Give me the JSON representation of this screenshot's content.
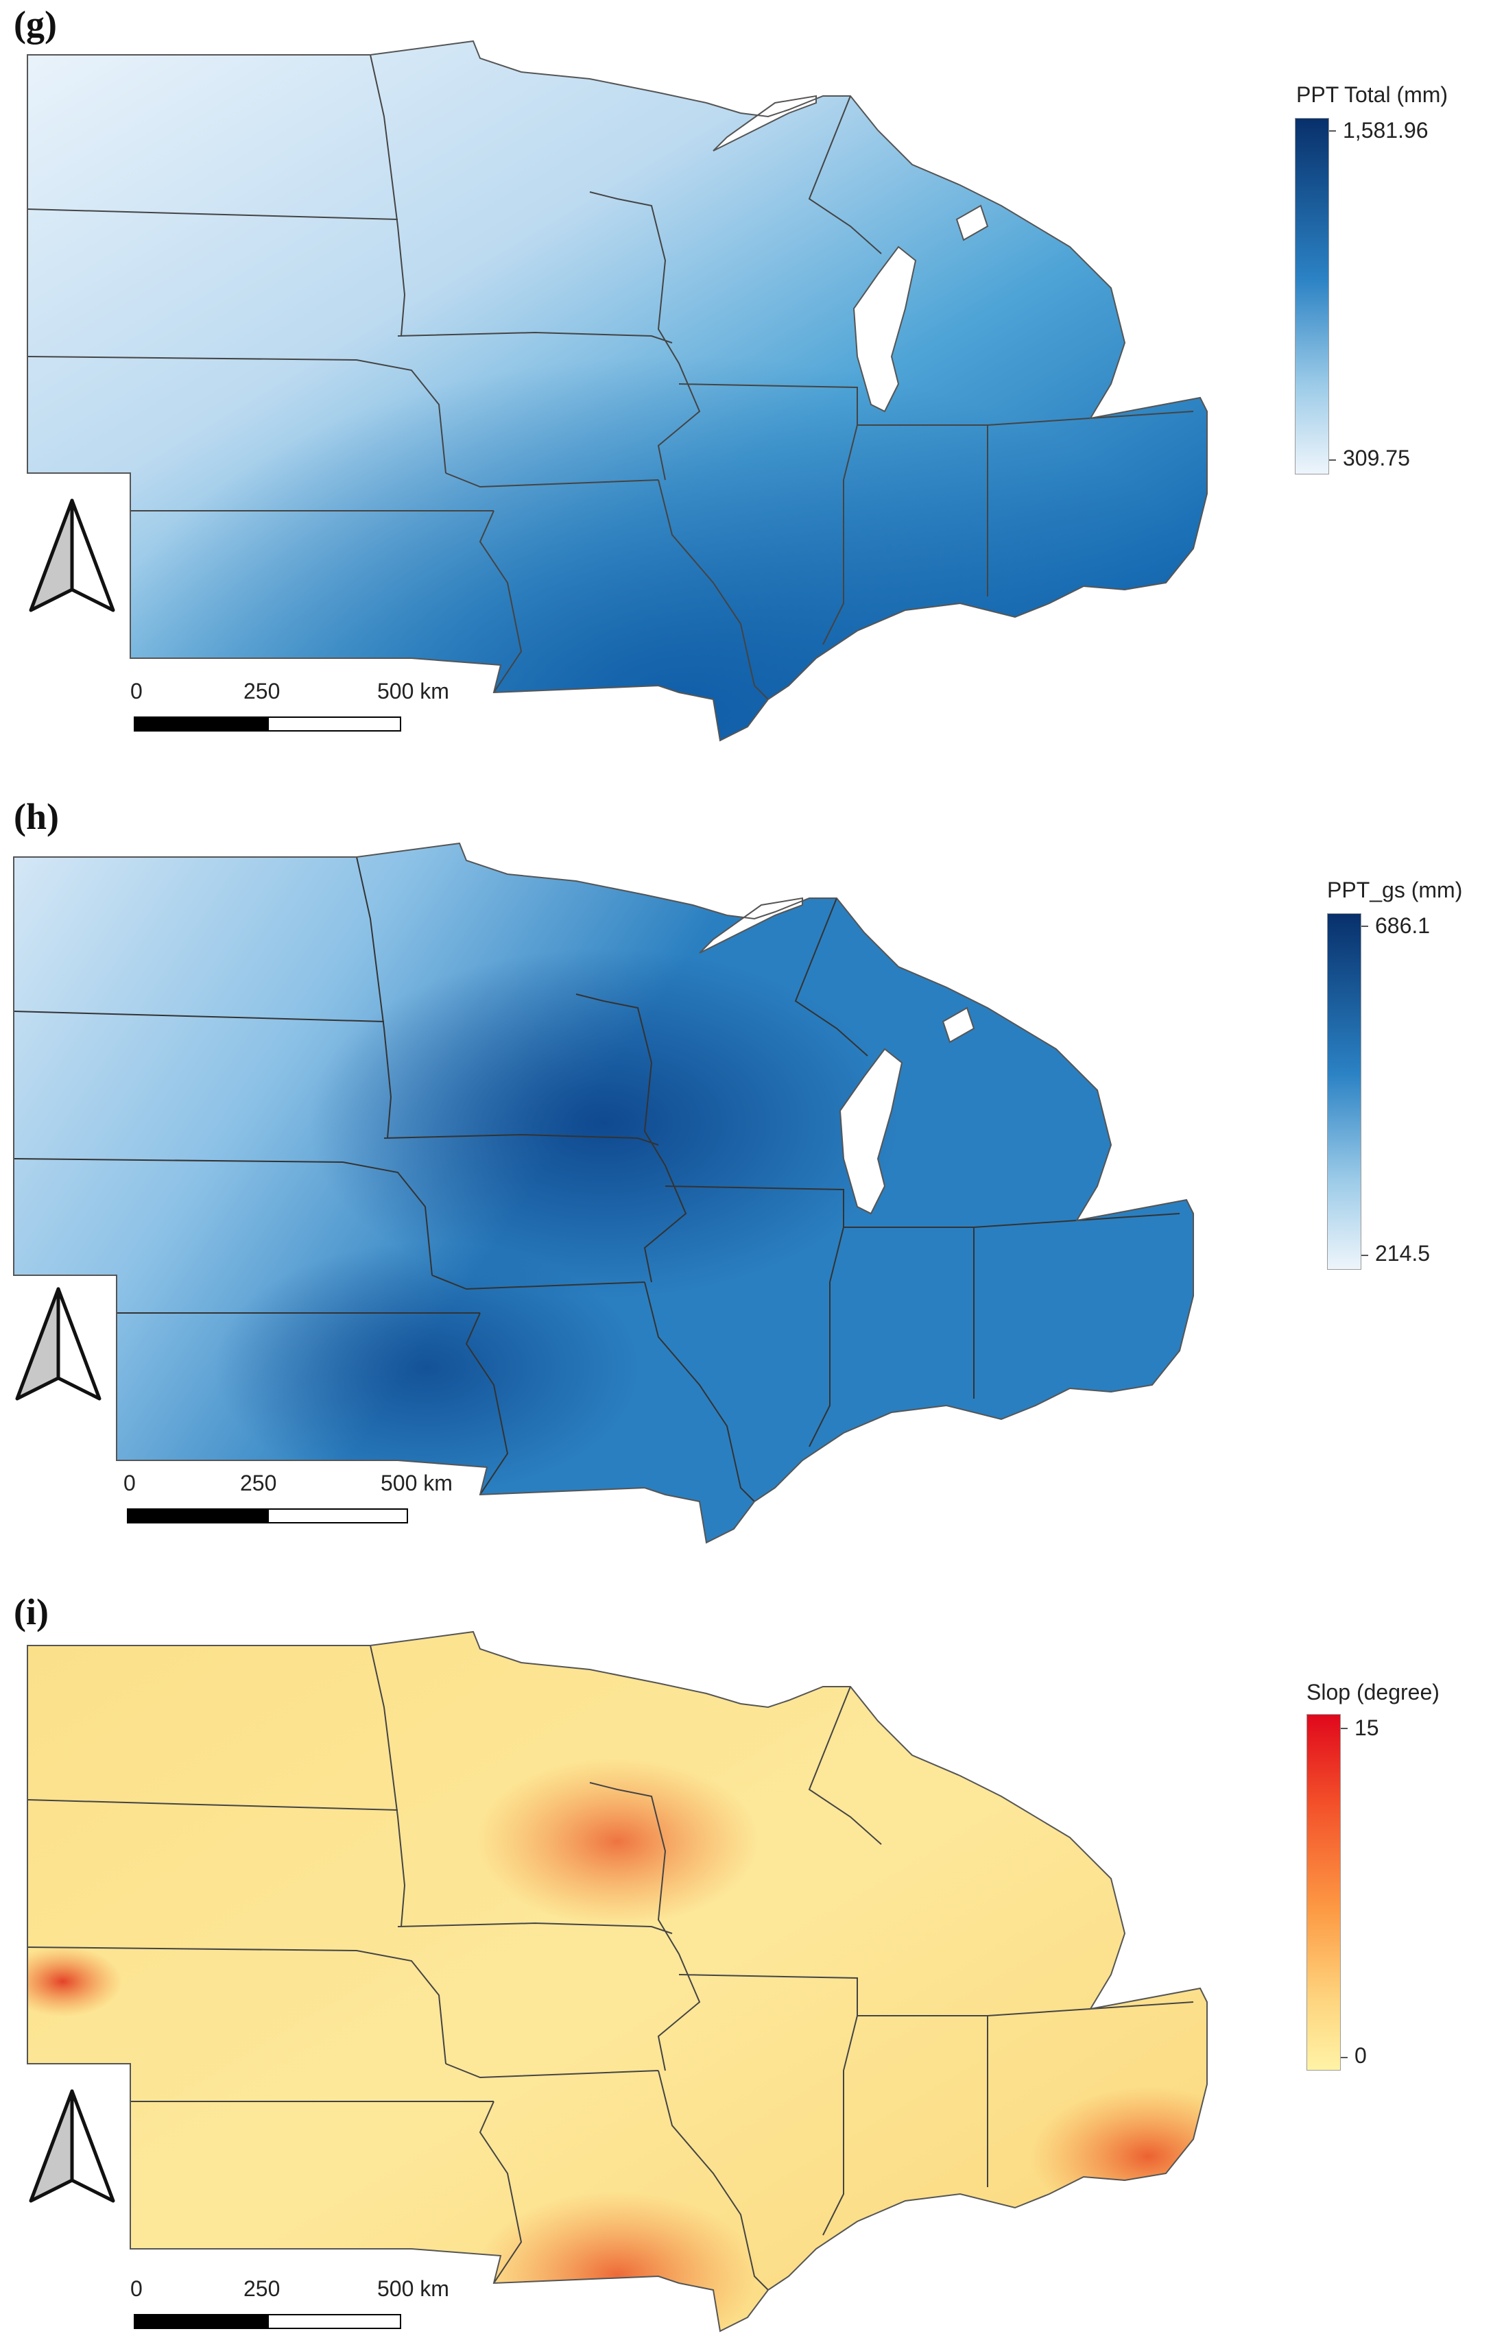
{
  "panels": [
    {
      "label": "(g)",
      "legend": {
        "title": "PPT Total (mm)",
        "max": "1,581.96",
        "min": "309.75",
        "color_low": "#eef5fb",
        "color_mid": "#3a96cd",
        "color_high": "#08306b"
      },
      "scale": {
        "labels": [
          "0",
          "250",
          "500 km"
        ]
      }
    },
    {
      "label": "(h)",
      "legend": {
        "title": "PPT_gs (mm)",
        "max": "686.1",
        "min": "214.5",
        "color_low": "#eef5fb",
        "color_mid": "#3a96cd",
        "color_high": "#08306b"
      },
      "scale": {
        "labels": [
          "0",
          "250",
          "500 km"
        ]
      }
    },
    {
      "label": "(i)",
      "legend": {
        "title": "Slop (degree)",
        "max": "15",
        "min": "0",
        "color_low": "#fff3a6",
        "color_mid": "#fd9a44",
        "color_high": "#e0081c"
      },
      "scale": {
        "labels": [
          "0",
          "250",
          "500 km"
        ]
      }
    }
  ],
  "icons": {
    "north_arrow": "north-arrow-icon"
  }
}
